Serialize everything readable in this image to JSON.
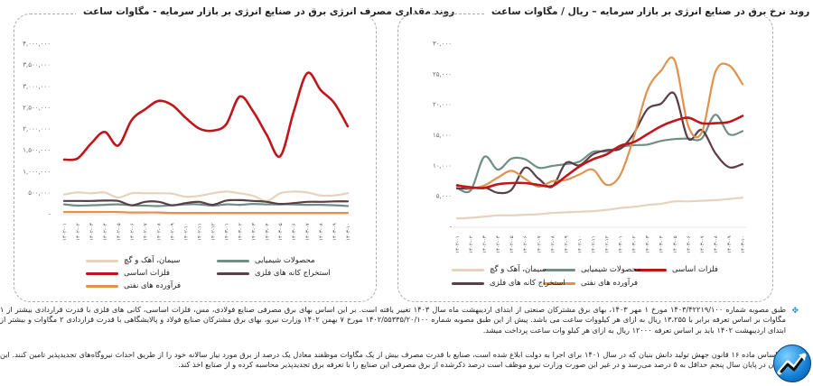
{
  "left_chart": {
    "title": "روند مقداری مصرف انرژی برق در صنایع انرژی بر بازار سرمایه  - مگاوات ساعت"
  },
  "right_chart": {
    "title": "روند نرخ برق در صنایع انرژی بر بازار سرمایه – ریال / مگاوات ساعت"
  },
  "legend": {
    "cement": "سیمان، آهک و گچ",
    "chemicals": "محصولات شیمیایی",
    "base_metals": "فلزات اساسی",
    "metal_mining": "استخراج کانه های فلزی",
    "petroleum": "فرآورده های نفتی"
  },
  "notes": [
    "طبق مصوبه شماره ۱۴۰۳/۴۲۲۱۹/۱۰۰ مورخ ۱ مهر ۱۴۰۳، بهای برق مشترکان صنعتی از ابتدای اردیبهشت ماه سال ۱۴۰۳ تغییر یافته است. بر این اساس بهای برق مصرفی صنایع فولادی، مس، فلزات اساسی، کانی های فلزی با قدرت قراردادی بیشتر از ۱ مگاوات بر اساس تعرفه برابر با ۱۳،۲۵۵ ریال به ازای هر کیلووات ساعت می باشد. پیش از این طبق مصوبه شماره ۱۴۰۲/۵۵۳۳۵/۲۰/۱۰۰ مورخ ۷ بهمن ۱۴۰۲ وزارت نیرو، بهای برق مشترکان صنایع فولاد و پالایشگاهی با قدرت قراردادی ۲ مگاوات و بیشتر از ابتدای اردیبهشت ۱۴۰۲ باید بر اساس تعرفه ۱۲۰۰۰ ریال به ازای هر کیلو وات ساعت پرداخت میشد.",
    "بر اساس ماده ۱۶ قانون جهش تولید دانش بنیان که در سال ۱۴۰۱ برای اجرا به دولت ابلاغ شده است، صنایع با قدرت مصرف بیش از یک مگاوات موظفند معادل یک درصد از برق مورد نیاز سالانه خود را از طریق احداث نیروگاه‌های تجدیدپذیر تامین کنند. این میزان در پایان سال پنجم حداقل به ۵ درصد می‌رسد و در غیر این صورت وزارت نیرو موظف است درصد ذکرشده از برق مصرفی این صنایع را با تعرفه برق تجدیدپذیر محاسبه کرده و از صنایع اخذ کند."
  ],
  "colors": {
    "base_metals": "#c0151b",
    "cement": "#e6d3bd",
    "chemicals": "#6f8f86",
    "metal_mining": "#5a3f46",
    "petroleum": "#e0924f",
    "bullet": "#1e90c8"
  },
  "chart_data": [
    {
      "type": "line",
      "title": "روند مقداری مصرف انرژی برق در صنایع انرژی بر بازار سرمایه  - مگاوات ساعت",
      "xlabel": "",
      "ylabel": "مگاوات ساعت",
      "ylim": [
        0,
        4000000
      ],
      "yticks": [
        "-",
        "۵۰۰,۰۰۰",
        "۱,۰۰۰,۰۰۰",
        "۱,۵۰۰,۰۰۰",
        "۲,۰۰۰,۰۰۰",
        "۲,۵۰۰,۰۰۰",
        "۳,۰۰۰,۰۰۰",
        "۳,۵۰۰,۰۰۰",
        "۴,۰۰۰,۰۰۰"
      ],
      "grid": false,
      "legend_position": "bottom",
      "categories": [
        "۱۴۰۲-۰۱",
        "۱۴۰۲-۰۲",
        "۱۴۰۲-۰۳",
        "۱۴۰۲-۰۴",
        "۱۴۰۲-۰۵",
        "۱۴۰۲-۰۶",
        "۱۴۰۲-۰۷",
        "۱۴۰۲-۰۸",
        "۱۴۰۲-۰۹",
        "۱۴۰۲-۱۰",
        "۱۴۰۲-۱۱",
        "۱۴۰۲-۱۲",
        "۱۴۰۳-۰۱",
        "۱۴۰۳-۰۲",
        "۱۴۰۳-۰۳",
        "۱۴۰۳-۰۴",
        "۱۴۰۳-۰۵",
        "۱۴۰۳-۰۶",
        "۱۴۰۳-۰۷",
        "۱۴۰۳-۰۸",
        "۱۴۰۳-۰۹",
        "۱۴۰۳-۱۰"
      ],
      "series": [
        {
          "name": "فلزات اساسی",
          "key": "base_metals",
          "values": [
            1270000,
            1300000,
            1650000,
            1920000,
            1600000,
            2200000,
            2450000,
            2650000,
            2550000,
            2250000,
            2000000,
            1950000,
            2100000,
            2750000,
            2400000,
            1850000,
            1350000,
            2400000,
            3300000,
            2900000,
            2600000,
            2050000
          ]
        },
        {
          "name": "سیمان، آهک و گچ",
          "key": "cement",
          "values": [
            450000,
            500000,
            480000,
            500000,
            380000,
            480000,
            480000,
            480000,
            470000,
            400000,
            420000,
            480000,
            520000,
            480000,
            420000,
            300000,
            480000,
            520000,
            500000,
            430000,
            430000,
            480000
          ]
        },
        {
          "name": "محصولات شیمیایی",
          "key": "chemicals",
          "values": [
            220000,
            190000,
            200000,
            210000,
            220000,
            200000,
            190000,
            180000,
            200000,
            220000,
            220000,
            190000,
            220000,
            210000,
            230000,
            220000,
            220000,
            220000,
            210000,
            210000,
            200000,
            180000
          ]
        },
        {
          "name": "استخراج کانه های فلزی",
          "key": "metal_mining",
          "values": [
            300000,
            300000,
            300000,
            310000,
            300000,
            200000,
            280000,
            280000,
            200000,
            250000,
            280000,
            210000,
            310000,
            320000,
            300000,
            280000,
            230000,
            250000,
            280000,
            280000,
            290000,
            290000
          ]
        },
        {
          "name": "فرآورده های نفتی",
          "key": "petroleum",
          "values": [
            40000,
            40000,
            40000,
            40000,
            40000,
            30000,
            30000,
            30000,
            20000,
            20000,
            20000,
            20000,
            20000,
            20000,
            20000,
            20000,
            20000,
            20000,
            20000,
            20000,
            20000,
            20000
          ]
        }
      ]
    },
    {
      "type": "line",
      "title": "روند نرخ برق در صنایع انرژی بر بازار سرمایه – ریال / مگاوات ساعت",
      "xlabel": "",
      "ylabel": "ریال / مگاوات ساعت",
      "ylim": [
        0,
        30000
      ],
      "yticks": [
        "-",
        "۵,۰۰۰",
        "۱۰,۰۰۰",
        "۱۵,۰۰۰",
        "۲۰,۰۰۰",
        "۲۵,۰۰۰",
        "۳۰,۰۰۰"
      ],
      "grid": false,
      "legend_position": "bottom",
      "categories": [
        "۱۴۰۲-۰۱",
        "۱۴۰۲-۰۲",
        "۱۴۰۲-۰۳",
        "۱۴۰۲-۰۴",
        "۱۴۰۲-۰۵",
        "۱۴۰۲-۰۶",
        "۱۴۰۲-۰۷",
        "۱۴۰۲-۰۸",
        "۱۴۰۲-۰۹",
        "۱۴۰۲-۱۰",
        "۱۴۰۲-۱۱",
        "۱۴۰۲-۱۲",
        "۱۴۰۳-۰۱",
        "۱۴۰۳-۰۲",
        "۱۴۰۳-۰۳",
        "۱۴۰۳-۰۴",
        "۱۴۰۳-۰۵",
        "۱۴۰۳-۰۶",
        "۱۴۰۳-۰۷",
        "۱۴۰۳-۰۸",
        "۱۴۰۳-۰۹",
        "۱۴۰۳-۱۰"
      ],
      "series": [
        {
          "name": "فلزات اساسی",
          "key": "base_metals",
          "values": [
            6700,
            6400,
            6300,
            6900,
            7100,
            7100,
            6800,
            6600,
            8200,
            9800,
            11000,
            11800,
            13200,
            13800,
            15100,
            16400,
            17300,
            17800,
            16900,
            16900,
            17100,
            18100
          ]
        },
        {
          "name": "سیمان، آهک و گچ",
          "key": "cement",
          "values": [
            1300,
            1400,
            1600,
            1800,
            1800,
            1900,
            2000,
            2200,
            2300,
            2400,
            2500,
            2700,
            3000,
            3200,
            3500,
            3700,
            4100,
            4100,
            4200,
            4300,
            4500,
            4700
          ]
        },
        {
          "name": "محصولات شیمیایی",
          "key": "chemicals",
          "values": [
            6300,
            5900,
            11400,
            9300,
            11100,
            11000,
            9600,
            9900,
            10200,
            10600,
            12200,
            12300,
            13000,
            13300,
            13400,
            14000,
            14300,
            14400,
            14400,
            18300,
            15100,
            15600
          ]
        },
        {
          "name": "استخراج کانه های فلزی",
          "key": "metal_mining",
          "values": [
            6200,
            6200,
            6400,
            5500,
            6000,
            9600,
            7800,
            6500,
            10400,
            10000,
            11800,
            12500,
            12700,
            15200,
            19200,
            20100,
            21700,
            14400,
            15800,
            12000,
            9700,
            10200
          ]
        },
        {
          "name": "فرآورده های نفتی",
          "key": "petroleum",
          "values": [
            6800,
            6300,
            6700,
            8000,
            9100,
            7800,
            6500,
            7400,
            7600,
            8500,
            9300,
            6800,
            8400,
            14600,
            22300,
            25500,
            27200,
            16500,
            15400,
            25300,
            26400,
            23300
          ]
        }
      ]
    }
  ]
}
